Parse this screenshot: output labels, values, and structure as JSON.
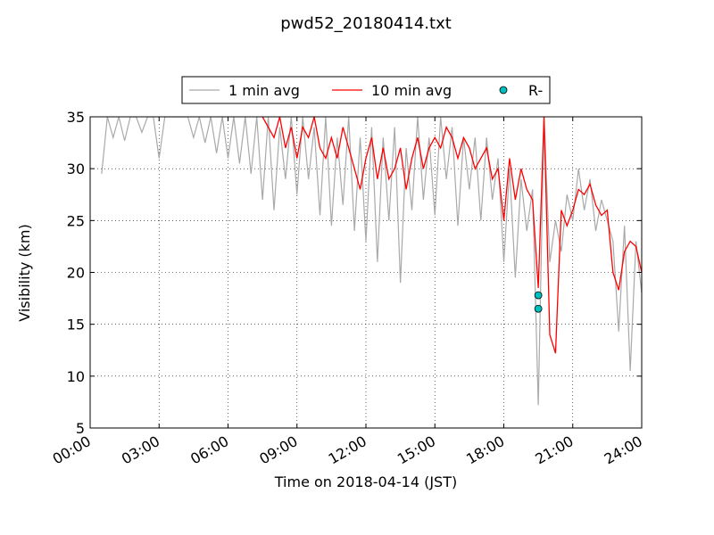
{
  "chart_data": {
    "type": "line",
    "title": "pwd52_20180414.txt",
    "xlabel": "Time on 2018-04-14 (JST)",
    "ylabel": "Visibility (km)",
    "xlim": [
      0,
      24
    ],
    "ylim": [
      5,
      35
    ],
    "xticks": [
      {
        "value": 0,
        "label": "00:00"
      },
      {
        "value": 3,
        "label": "03:00"
      },
      {
        "value": 6,
        "label": "06:00"
      },
      {
        "value": 9,
        "label": "09:00"
      },
      {
        "value": 12,
        "label": "12:00"
      },
      {
        "value": 15,
        "label": "15:00"
      },
      {
        "value": 18,
        "label": "18:00"
      },
      {
        "value": 21,
        "label": "21:00"
      },
      {
        "value": 24,
        "label": "24:00"
      }
    ],
    "yticks": [
      5,
      10,
      15,
      20,
      25,
      30,
      35
    ],
    "grid": true,
    "legend": "upper center",
    "series": [
      {
        "name": "1 min avg",
        "color": "#a9a9a9",
        "marker": "none",
        "x": [
          0.5,
          0.75,
          1,
          1.25,
          1.5,
          1.75,
          2,
          2.25,
          2.5,
          2.75,
          3,
          3.25,
          3.5,
          3.75,
          4,
          4.25,
          4.5,
          4.75,
          5,
          5.25,
          5.5,
          5.75,
          6,
          6.25,
          6.5,
          6.75,
          7,
          7.25,
          7.5,
          7.75,
          8,
          8.25,
          8.5,
          8.75,
          9,
          9.25,
          9.5,
          9.75,
          10,
          10.25,
          10.5,
          10.75,
          11,
          11.25,
          11.5,
          11.75,
          12,
          12.25,
          12.5,
          12.75,
          13,
          13.25,
          13.5,
          13.75,
          14,
          14.25,
          14.5,
          14.75,
          15,
          15.25,
          15.5,
          15.75,
          16,
          16.25,
          16.5,
          16.75,
          17,
          17.25,
          17.5,
          17.75,
          18,
          18.25,
          18.5,
          18.75,
          19,
          19.25,
          19.5,
          19.75,
          20,
          20.25,
          20.5,
          20.75,
          21,
          21.25,
          21.5,
          21.75,
          22,
          22.25,
          22.5,
          22.75,
          23,
          23.25,
          23.5,
          23.75,
          24
        ],
        "values": [
          29.5,
          35,
          33,
          35,
          32.7,
          35,
          35,
          33.5,
          35,
          35,
          31,
          35,
          35,
          35,
          35,
          35,
          33,
          35,
          32.5,
          35,
          31.5,
          35,
          31,
          35,
          30.5,
          35,
          29.5,
          35,
          27,
          35,
          26,
          34,
          29,
          35,
          27.5,
          35,
          29,
          34,
          25.5,
          35,
          24.5,
          33,
          26.5,
          35,
          24,
          33,
          23,
          34,
          21,
          33,
          25,
          34,
          19,
          32,
          26,
          35,
          27,
          33,
          25.5,
          35,
          29,
          34,
          24.5,
          33,
          28,
          33,
          25,
          33,
          27,
          31,
          21,
          30,
          19.5,
          29,
          24,
          28,
          7.2,
          35,
          21,
          25,
          22,
          27.5,
          25,
          30,
          26,
          29,
          24,
          27,
          25,
          23,
          14.3,
          24.5,
          10.5,
          23,
          18
        ]
      },
      {
        "name": "10 min avg",
        "color": "#ff0000",
        "marker": "none",
        "x": [
          7.5,
          7.75,
          8,
          8.25,
          8.5,
          8.75,
          9,
          9.25,
          9.5,
          9.75,
          10,
          10.25,
          10.5,
          10.75,
          11,
          11.25,
          11.5,
          11.75,
          12,
          12.25,
          12.5,
          12.75,
          13,
          13.25,
          13.5,
          13.75,
          14,
          14.25,
          14.5,
          14.75,
          15,
          15.25,
          15.5,
          15.75,
          16,
          16.25,
          16.5,
          16.75,
          17,
          17.25,
          17.5,
          17.75,
          18,
          18.25,
          18.5,
          18.75,
          19,
          19.25,
          19.5,
          19.75,
          20,
          20.25,
          20.5,
          20.75,
          21,
          21.25,
          21.5,
          21.75,
          22,
          22.25,
          22.5,
          22.75,
          23,
          23.25,
          23.5,
          23.75,
          24
        ],
        "values": [
          35,
          34,
          33,
          35,
          32,
          34,
          31,
          34,
          33,
          35,
          32,
          31,
          33,
          31,
          34,
          32,
          30,
          28,
          31,
          33,
          29,
          32,
          29,
          30,
          32,
          28,
          31,
          33,
          30,
          32,
          33,
          32,
          34,
          33,
          31,
          33,
          32,
          30,
          31,
          32,
          29,
          30,
          25,
          31,
          27,
          30,
          28,
          27,
          18.5,
          35,
          14,
          12.2,
          26,
          24.5,
          26,
          28,
          27.5,
          28.5,
          26.5,
          25.5,
          26,
          20,
          18.3,
          22,
          23,
          22.5,
          20
        ]
      },
      {
        "name": "R-",
        "color": "#00bfbf",
        "marker": "circle",
        "x": [
          19.5,
          19.5
        ],
        "values": [
          17.8,
          16.5
        ]
      }
    ]
  }
}
